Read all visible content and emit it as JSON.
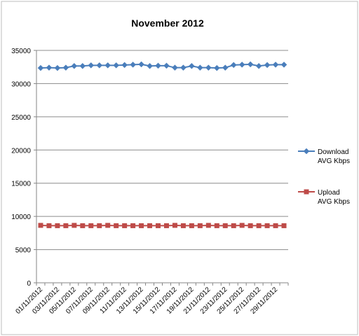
{
  "chart_data": {
    "type": "line",
    "title": "November 2012",
    "xlabel": "",
    "ylabel": "",
    "ylim": [
      0,
      35000
    ],
    "y_ticks": [
      0,
      5000,
      10000,
      15000,
      20000,
      25000,
      30000,
      35000
    ],
    "y_tick_labels": [
      "0",
      "5000",
      "10000",
      "15000",
      "20000",
      "25000",
      "30000",
      "35000"
    ],
    "grid": "horizontal",
    "legend_position": "right",
    "categories": [
      "01/11/2012",
      "02/11/2012",
      "03/11/2012",
      "04/11/2012",
      "05/11/2012",
      "06/11/2012",
      "07/11/2012",
      "08/11/2012",
      "09/11/2012",
      "10/11/2012",
      "11/11/2012",
      "12/11/2012",
      "13/11/2012",
      "14/11/2012",
      "15/11/2012",
      "16/11/2012",
      "17/11/2012",
      "18/11/2012",
      "19/11/2012",
      "20/11/2012",
      "21/11/2012",
      "22/11/2012",
      "23/11/2012",
      "24/11/2012",
      "25/11/2012",
      "26/11/2012",
      "27/11/2012",
      "28/11/2012",
      "29/11/2012",
      "30/11/2012"
    ],
    "x_tick_labels": [
      "01/11/2012",
      "03/11/2012",
      "05/11/2012",
      "07/11/2012",
      "09/11/2012",
      "11/11/2012",
      "13/11/2012",
      "15/11/2012",
      "17/11/2012",
      "19/11/2012",
      "21/11/2012",
      "23/11/2012",
      "25/11/2012",
      "27/11/2012",
      "29/11/2012"
    ],
    "series": [
      {
        "name": "Download AVG Kbps",
        "legend_lines": [
          "Download",
          "AVG Kbps"
        ],
        "color": "#4a7ebb",
        "marker": "diamond",
        "values": [
          32350,
          32400,
          32350,
          32400,
          32650,
          32650,
          32750,
          32750,
          32750,
          32750,
          32800,
          32850,
          32900,
          32650,
          32700,
          32700,
          32400,
          32400,
          32650,
          32400,
          32400,
          32350,
          32400,
          32800,
          32850,
          32900,
          32650,
          32800,
          32850,
          32850
        ]
      },
      {
        "name": "Upload AVG Kbps",
        "legend_lines": [
          "Upload",
          "AVG Kbps"
        ],
        "color": "#be4b48",
        "marker": "square",
        "values": [
          8650,
          8600,
          8600,
          8600,
          8650,
          8600,
          8600,
          8600,
          8650,
          8600,
          8600,
          8600,
          8600,
          8600,
          8600,
          8600,
          8650,
          8600,
          8600,
          8600,
          8650,
          8600,
          8600,
          8600,
          8650,
          8600,
          8600,
          8600,
          8600,
          8600
        ]
      }
    ]
  }
}
